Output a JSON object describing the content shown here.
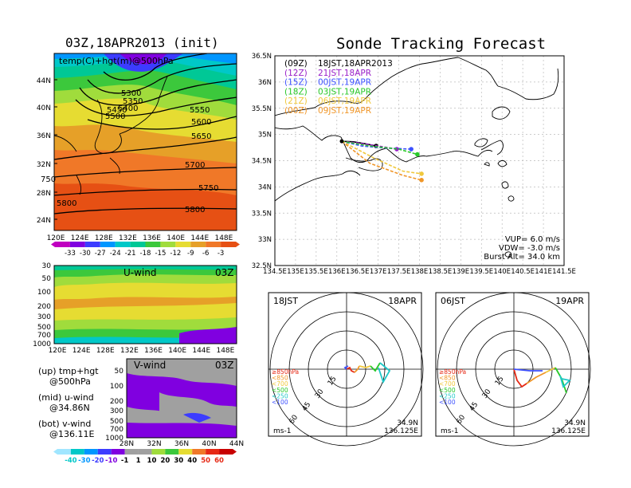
{
  "titles": {
    "left": "03Z,18APR2013 (init)",
    "main": "Sonde Tracking Forecast"
  },
  "panel_top": {
    "label": "temp(C)+hgt(m)@500hPa",
    "y_ticks": [
      "44N",
      "40N",
      "36N",
      "32N",
      "28N",
      "24N"
    ],
    "x_ticks": [
      "120E",
      "124E",
      "128E",
      "132E",
      "136E",
      "140E",
      "144E",
      "148E"
    ],
    "contour_labels": [
      "5300",
      "5350",
      "5400",
      "5450",
      "5500",
      "5550",
      "5600",
      "5650",
      "5700",
      "5750",
      "5750",
      "5800",
      "5800"
    ]
  },
  "colorbar_temp": {
    "labels": [
      "-33",
      "-30",
      "-27",
      "-24",
      "-21",
      "-18",
      "-15",
      "-12",
      "-9",
      "-6",
      "-3"
    ],
    "colors": [
      "#c000c0",
      "#8000e0",
      "#3c3cff",
      "#0096ff",
      "#00c8c8",
      "#00c896",
      "#3cc83c",
      "#a0dc3c",
      "#e6dc32",
      "#e6a028",
      "#f07828",
      "#e65014"
    ]
  },
  "panel_u": {
    "label": "U-wind",
    "time": "03Z",
    "y_ticks": [
      "30",
      "50",
      "100",
      "200",
      "300",
      "500",
      "700",
      "1000"
    ],
    "x_ticks": [
      "120E",
      "124E",
      "128E",
      "132E",
      "136E",
      "140E",
      "144E",
      "148E"
    ]
  },
  "panel_v": {
    "label": "V-wind",
    "time": "03Z",
    "y_ticks": [
      "50",
      "100",
      "200",
      "300",
      "500",
      "700",
      "1000"
    ],
    "x_ticks": [
      "28N",
      "32N",
      "36N",
      "40N",
      "44N"
    ]
  },
  "legend_notes": [
    "(up) tmp+hgt",
    "@500hPa",
    "(mid) u-wind",
    "@34.86N",
    "(bot) v-wind",
    "@136.11E"
  ],
  "colorbar_wind": {
    "labels": [
      "-40",
      "-30",
      "-20",
      "-10",
      "-1",
      "1",
      "10",
      "20",
      "30",
      "40",
      "50",
      "60"
    ],
    "colors": [
      "#a0e6ff",
      "#00c8c8",
      "#0096ff",
      "#3c3cff",
      "#8000e0",
      "#a0a0a0",
      "#a0a0a0",
      "#a0dc3c",
      "#3cc83c",
      "#e6dc32",
      "#f07828",
      "#e62814",
      "#c80000"
    ]
  },
  "panel_map": {
    "y_ticks": [
      "36.5N",
      "36N",
      "35.5N",
      "35N",
      "34.5N",
      "34N",
      "33.5N",
      "33N",
      "32.5N"
    ],
    "x_ticks": [
      "134.5E",
      "135E",
      "135.5E",
      "136E",
      "136.5E",
      "137E",
      "137.5E",
      "138E",
      "138.5E",
      "139E",
      "139.5E",
      "140E",
      "140.5E",
      "141E",
      "141.5E"
    ],
    "xlim": [
      134.5,
      141.5
    ],
    "ylim": [
      32.5,
      36.5
    ],
    "launches": [
      {
        "code": "(09Z)",
        "time": "18JST,18APR2013",
        "color": "#000000"
      },
      {
        "code": "(12Z)",
        "time": "21JST,18APR",
        "color": "#9a1ec8"
      },
      {
        "code": "(15Z)",
        "time": "00JST,19APR",
        "color": "#3c50ff"
      },
      {
        "code": "(18Z)",
        "time": "03JST,19APR",
        "color": "#28c828"
      },
      {
        "code": "(21Z)",
        "time": "06JST,19APR",
        "color": "#f0c83c"
      },
      {
        "code": "(00Z)",
        "time": "09JST,19APR",
        "color": "#f09628"
      }
    ],
    "params": [
      "VUP= 6.0 m/s",
      "VDW= -3.0 m/s",
      "Burst Alt= 34.0 km"
    ]
  },
  "polar_left": {
    "time": "18JST",
    "date": "18APR",
    "lat": "34.9N",
    "lon": "136.125E",
    "unit": "ms-1",
    "ring_labels": [
      "15",
      "30",
      "45",
      "60"
    ]
  },
  "polar_right": {
    "time": "06JST",
    "date": "19APR",
    "lat": "34.9N",
    "lon": "136.125E",
    "unit": "ms-1",
    "ring_labels": [
      "15",
      "30",
      "45",
      "60"
    ]
  },
  "polar_legend": [
    {
      "label": "≥850hPa",
      "color": "#e62814"
    },
    {
      "label": "<850",
      "color": "#f09628"
    },
    {
      "label": "<700",
      "color": "#f0c83c"
    },
    {
      "label": "<500",
      "color": "#28c828"
    },
    {
      "label": "<250",
      "color": "#20c8c8"
    },
    {
      "label": "<100",
      "color": "#3c50ff"
    }
  ],
  "chart_data": {
    "type": "line",
    "title": "Sonde Tracking Forecast",
    "xlim": [
      134.5,
      141.5
    ],
    "ylim": [
      32.5,
      36.5
    ],
    "series": [
      {
        "name": "(09Z) 18JST,18APR2013",
        "color": "#000000",
        "x": [
          136.12,
          136.4,
          136.7,
          136.95
        ],
        "y": [
          34.87,
          34.86,
          34.82,
          34.78
        ]
      },
      {
        "name": "(12Z) 21JST,18APR",
        "color": "#9a1ec8",
        "x": [
          136.12,
          136.5,
          137.0,
          137.45
        ],
        "y": [
          34.87,
          34.84,
          34.78,
          34.72
        ]
      },
      {
        "name": "(15Z) 00JST,19APR",
        "color": "#3c50ff",
        "x": [
          136.12,
          136.6,
          137.2,
          137.8
        ],
        "y": [
          34.87,
          34.78,
          34.74,
          34.72
        ]
      },
      {
        "name": "(18Z) 03JST,19APR",
        "color": "#28c828",
        "x": [
          136.12,
          136.8,
          137.5,
          137.95
        ],
        "y": [
          34.87,
          34.78,
          34.72,
          34.62
        ]
      },
      {
        "name": "(21Z) 06JST,19APR",
        "color": "#f0c83c",
        "x": [
          136.12,
          136.9,
          137.6,
          138.05
        ],
        "y": [
          34.87,
          34.55,
          34.3,
          34.25
        ]
      },
      {
        "name": "(00Z) 09JST,19APR",
        "color": "#f09628",
        "x": [
          136.12,
          136.8,
          137.6,
          138.05
        ],
        "y": [
          34.87,
          34.45,
          34.22,
          34.13
        ]
      }
    ]
  }
}
